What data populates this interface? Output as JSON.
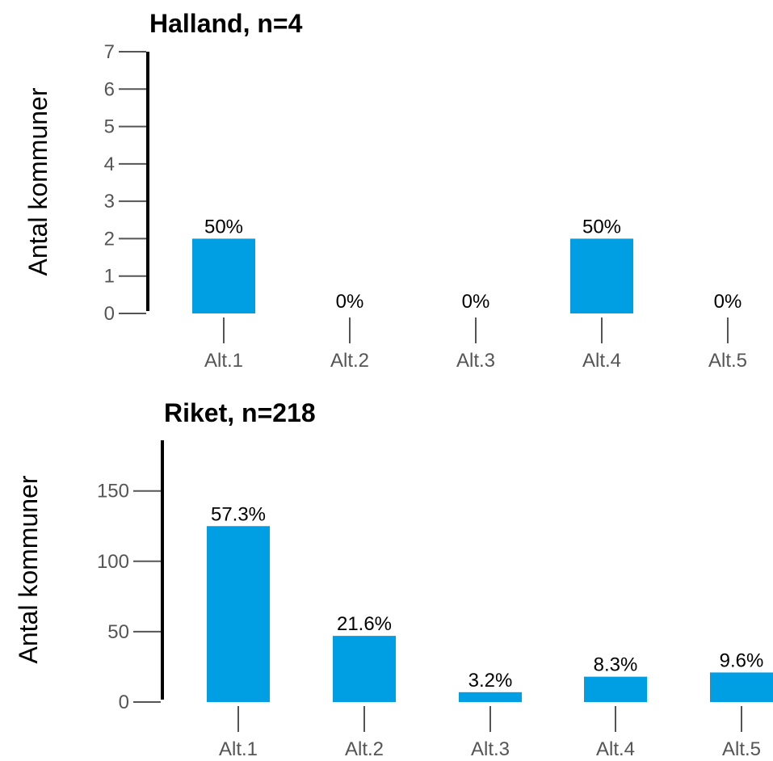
{
  "chart_data": [
    {
      "type": "bar",
      "title": "Halland, n=4",
      "ylabel": "Antal kommuner",
      "categories": [
        "Alt.1",
        "Alt.2",
        "Alt.3",
        "Alt.4",
        "Alt.5"
      ],
      "values": [
        2,
        0,
        0,
        2,
        0
      ],
      "labels": [
        "50%",
        "0%",
        "0%",
        "50%",
        "0%"
      ],
      "ylim": [
        0,
        7
      ],
      "yticks": [
        "0",
        "1",
        "2",
        "3",
        "4",
        "5",
        "6",
        "7"
      ],
      "grid": false,
      "bar_color": "#009fe3"
    },
    {
      "type": "bar",
      "title": "Riket, n=218",
      "ylabel": "Antal kommuner",
      "categories": [
        "Alt.1",
        "Alt.2",
        "Alt.3",
        "Alt.4",
        "Alt.5"
      ],
      "values": [
        125,
        47,
        7,
        18,
        21
      ],
      "labels": [
        "57.3%",
        "21.6%",
        "3.2%",
        "8.3%",
        "9.6%"
      ],
      "ylim": [
        0,
        186
      ],
      "yticks": [
        "0",
        "50",
        "100",
        "150"
      ],
      "grid": false,
      "bar_color": "#009fe3"
    }
  ]
}
